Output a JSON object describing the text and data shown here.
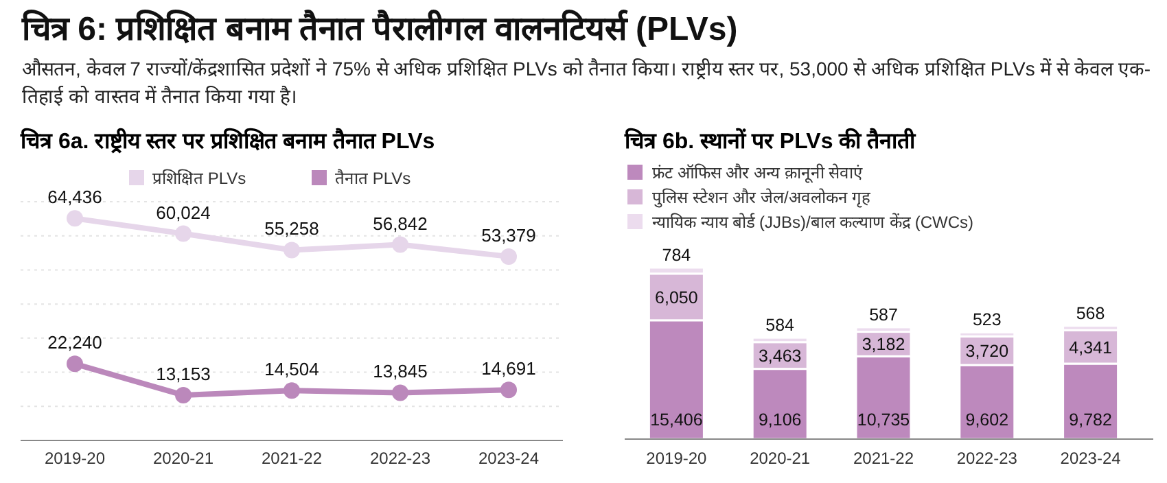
{
  "chart_data": [
    {
      "type": "other",
      "title": "चित्र 6: प्रशिक्षित बनाम तैनात पैरालीगल वालनटियर्स (PLVs)",
      "subtitle": "औसतन, केवल 7 राज्यों/केंद्रशासित प्रदेशों ने 75% से अधिक प्रशिक्षित PLVs को तैनात किया। राष्ट्रीय स्तर पर, 53,000 से अधिक प्रशिक्षित PLVs में से केवल एक-तिहाई को वास्तव में तैनात किया गया है।"
    },
    {
      "type": "line",
      "title": "चित्र 6a. राष्ट्रीय स्तर पर प्रशिक्षित बनाम तैनात PLVs",
      "categories": [
        "2019-20",
        "2020-21",
        "2021-22",
        "2022-23",
        "2023-24"
      ],
      "grid": "y",
      "legend": "top",
      "marker": "circle",
      "series": [
        {
          "name": "प्रशिक्षित PLVs",
          "color": "#e6d6ea",
          "values": [
            64436,
            60024,
            55258,
            56842,
            53379
          ],
          "value_labels": [
            "64,436",
            "60,024",
            "55,258",
            "56,842",
            "53,379"
          ]
        },
        {
          "name": "तैनात PLVs",
          "color": "#bb88bb",
          "values": [
            22240,
            13153,
            14504,
            13845,
            14691
          ],
          "value_labels": [
            "22,240",
            "13,153",
            "14,504",
            "13,845",
            "14,691"
          ]
        }
      ]
    },
    {
      "type": "bar",
      "title": "चित्र 6b. स्थानों पर PLVs की तैनाती",
      "categories": [
        "2019-20",
        "2020-21",
        "2021-22",
        "2022-23",
        "2023-24"
      ],
      "stacked": true,
      "legend": "top left",
      "series": [
        {
          "name": "फ्रंट ऑफिस और अन्य क़ानूनी सेवाएं",
          "color": "#bd89bd",
          "values": [
            15406,
            9106,
            10735,
            9602,
            9782
          ],
          "value_labels": [
            "15,406",
            "9,106",
            "10,735",
            "9,602",
            "9,782"
          ]
        },
        {
          "name": "पुलिस स्टेशन और जेल/अवलोकन गृह",
          "color": "#d7b7d7",
          "values": [
            6050,
            3463,
            3182,
            3720,
            4341
          ],
          "value_labels": [
            "6,050",
            "3,463",
            "3,182",
            "3,720",
            "4,341"
          ]
        },
        {
          "name": "न्यायिक न्याय बोर्ड (JJBs)/बाल कल्याण केंद्र (CWCs)",
          "color": "#ecdcee",
          "values": [
            784,
            584,
            587,
            523,
            568
          ],
          "value_labels": [
            "784",
            "584",
            "587",
            "523",
            "568"
          ]
        }
      ]
    }
  ]
}
